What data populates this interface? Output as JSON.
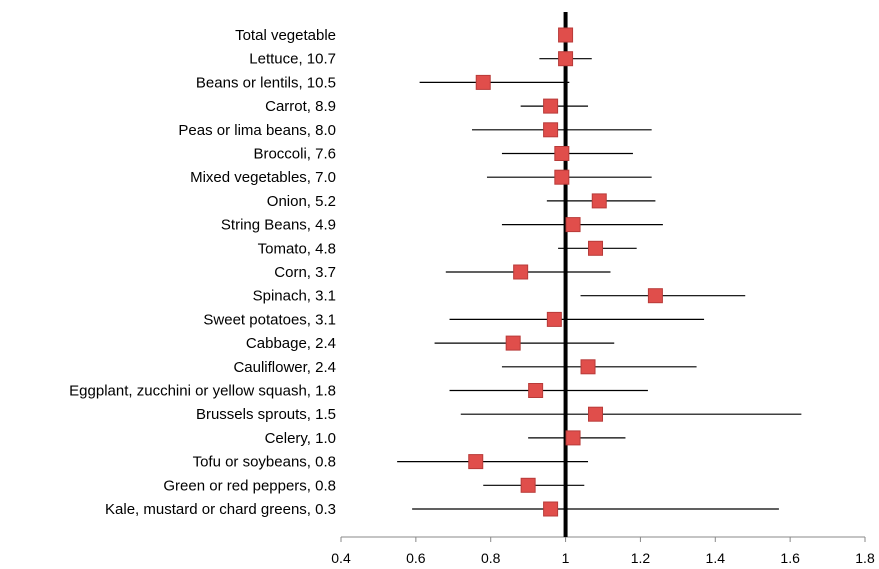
{
  "chart_data": {
    "type": "scatter",
    "subtype": "forest-plot",
    "title": "",
    "xlabel": "",
    "ylabel": "",
    "xlim": [
      0.4,
      1.8
    ],
    "xticks": [
      "0.4",
      "0.6",
      "0.8",
      "1",
      "1.2",
      "1.4",
      "1.6",
      "1.8"
    ],
    "reference_line": 1,
    "marker_color": "#e04e4b",
    "marker_edge": "#b83b39",
    "categories": [
      "Total vegetable",
      "Lettuce, 10.7",
      "Beans or lentils, 10.5",
      "Carrot, 8.9",
      "Peas or lima beans, 8.0",
      "Broccoli, 7.6",
      "Mixed vegetables, 7.0",
      "Onion, 5.2",
      "String Beans, 4.9",
      "Tomato, 4.8",
      "Corn, 3.7",
      "Spinach, 3.1",
      "Sweet potatoes, 3.1",
      "Cabbage, 2.4",
      "Cauliflower, 2.4",
      "Eggplant, zucchini or yellow squash, 1.8",
      "Brussels sprouts, 1.5",
      "Celery, 1.0",
      "Tofu or soybeans, 0.8",
      "Green or red peppers, 0.8",
      "Kale, mustard or chard greens, 0.3"
    ],
    "estimates": [
      1.0,
      1.0,
      0.78,
      0.96,
      0.96,
      0.99,
      0.99,
      1.09,
      1.02,
      1.08,
      0.88,
      1.24,
      0.97,
      0.86,
      1.06,
      0.92,
      1.08,
      1.02,
      0.76,
      0.9,
      0.96
    ],
    "lower": [
      null,
      0.93,
      0.61,
      0.88,
      0.75,
      0.83,
      0.79,
      0.95,
      0.83,
      0.98,
      0.68,
      1.04,
      0.69,
      0.65,
      0.83,
      0.69,
      0.72,
      0.9,
      0.55,
      0.78,
      0.59
    ],
    "upper": [
      null,
      1.07,
      1.01,
      1.06,
      1.23,
      1.18,
      1.23,
      1.24,
      1.26,
      1.19,
      1.12,
      1.48,
      1.37,
      1.13,
      1.35,
      1.22,
      1.63,
      1.16,
      1.06,
      1.05,
      1.57
    ]
  }
}
